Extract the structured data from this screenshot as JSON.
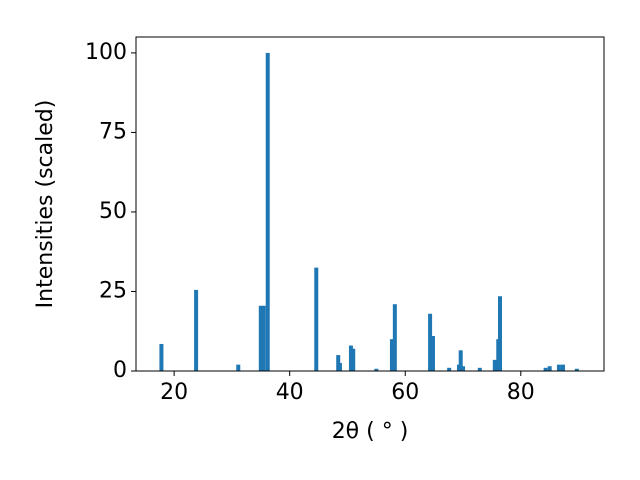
{
  "chart_data": {
    "type": "bar",
    "x_label": "2θ ( ° )",
    "y_label": "Intensities (scaled)",
    "x": [
      17.8,
      23.8,
      31.1,
      35.0,
      35.5,
      36.2,
      44.6,
      48.4,
      48.7,
      50.6,
      51.0,
      55.0,
      57.7,
      58.2,
      64.3,
      64.8,
      67.6,
      69.3,
      69.6,
      70.0,
      72.9,
      75.5,
      76.1,
      76.4,
      84.3,
      85.0,
      86.6,
      87.3,
      89.7
    ],
    "values": [
      8.5,
      25.5,
      2,
      20.5,
      20.5,
      100,
      32.5,
      5,
      2.5,
      8,
      7,
      0.7,
      10,
      21,
      18,
      11,
      1,
      2,
      6.5,
      1.5,
      1,
      3.5,
      10,
      23.5,
      1,
      1.5,
      2,
      2,
      0.7
    ],
    "color": "#1f77b4",
    "xlim": [
      13.4,
      94.4
    ],
    "ylim": [
      0,
      105
    ],
    "xticks": [
      20,
      40,
      60,
      80
    ],
    "yticks": [
      0,
      25,
      50,
      75,
      100
    ],
    "grid": false
  }
}
